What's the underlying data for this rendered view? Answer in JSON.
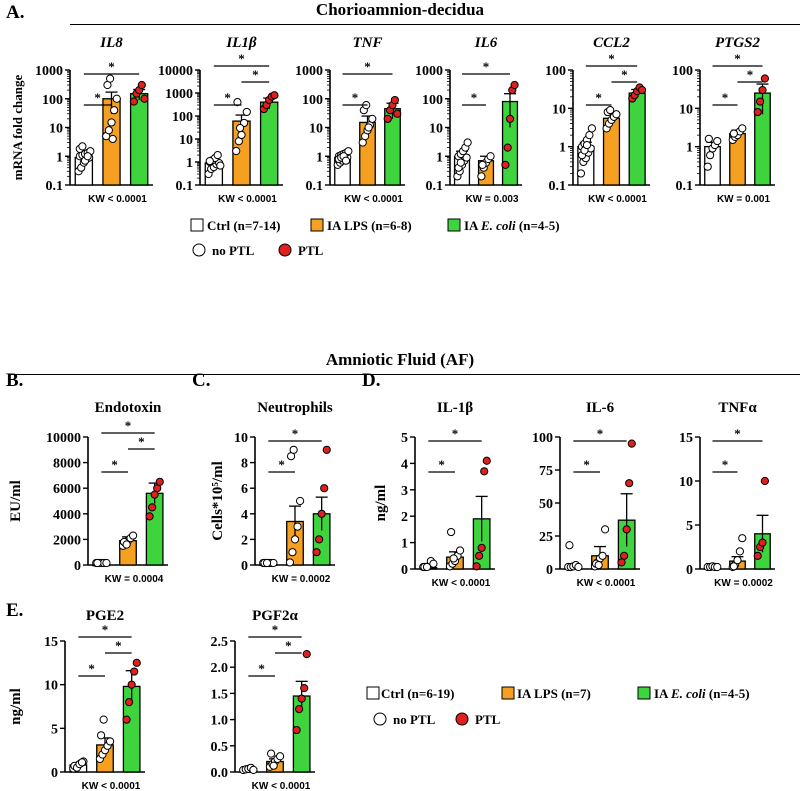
{
  "sections": {
    "chorio_title": "Chorioamnion-decidua",
    "af_title": "Amniotic Fluid (AF)"
  },
  "panel_labels": {
    "a": "A.",
    "b": "B.",
    "c": "C.",
    "d": "D.",
    "e": "E."
  },
  "colors": {
    "ctrl": "#ffffff",
    "lps": "#f5a020",
    "ecoli": "#3ed43e",
    "ptl": "#e0201e",
    "no_ptl": "#ffffff"
  },
  "legends": {
    "top": {
      "ctrl": "Ctrl (n=7-14)",
      "lps": "IA LPS (n=6-8)",
      "ecoli_prefix": "IA ",
      "ecoli_italic": "E. coli",
      "ecoli_suffix": " (n=4-5)",
      "no_ptl": "no PTL",
      "ptl": "PTL"
    },
    "bottom": {
      "ctrl": "Ctrl (n=6-19)",
      "lps": "IA LPS (n=7)",
      "ecoli_prefix": "IA ",
      "ecoli_italic": "E. coli",
      "ecoli_suffix": " (n=4-5)",
      "no_ptl": "no PTL",
      "ptl": "PTL"
    }
  },
  "chart_data": [
    {
      "id": "il8",
      "type": "bar",
      "title": "IL8",
      "title_italic": true,
      "scale": "log",
      "ylim": [
        0.1,
        1000
      ],
      "yticks": [
        "0.1",
        "1",
        "10",
        "100",
        "1000"
      ],
      "ylabel": "mRNA fold change",
      "categories": [
        "Ctrl",
        "IA LPS",
        "IA E. coli"
      ],
      "values": [
        0.9,
        100,
        150
      ],
      "errors": [
        0.3,
        70,
        60
      ],
      "sig": [
        "*",
        "*"
      ],
      "kw": "KW < 0.0001",
      "points": [
        [
          0.3,
          0.4,
          0.6,
          0.8,
          0.9,
          1.0,
          1.1,
          1.2,
          1.3,
          1.5,
          1.8,
          2.2,
          0.7,
          1.0
        ],
        [
          5,
          8,
          15,
          40,
          100,
          300,
          500,
          4
        ],
        [
          80,
          150,
          200,
          300,
          100
        ]
      ],
      "ptl": [
        [],
        [],
        [
          0,
          1,
          2,
          3,
          4
        ]
      ]
    },
    {
      "id": "il1b",
      "type": "bar",
      "title": "IL1β",
      "title_italic": true,
      "scale": "log",
      "ylim": [
        0.1,
        10000
      ],
      "yticks": [
        "0.1",
        "1",
        "10",
        "100",
        "1000",
        "10000"
      ],
      "categories": [
        "Ctrl",
        "IA LPS",
        "IA E. coli"
      ],
      "values": [
        0.9,
        60,
        400
      ],
      "errors": [
        0.3,
        50,
        200
      ],
      "sig": [
        "*",
        "*",
        "*"
      ],
      "kw": "KW < 0.0001",
      "points": [
        [
          0.3,
          0.5,
          0.6,
          0.8,
          0.9,
          1.0,
          1.2,
          1.5,
          2.0,
          0.7,
          1.1
        ],
        [
          3,
          8,
          15,
          50,
          150,
          400,
          30
        ],
        [
          200,
          300,
          500,
          700,
          800
        ]
      ],
      "ptl": [
        [],
        [],
        [
          0,
          1,
          2,
          3,
          4
        ]
      ]
    },
    {
      "id": "tnf",
      "type": "bar",
      "title": "TNF",
      "title_italic": true,
      "scale": "log",
      "ylim": [
        0.1,
        1000
      ],
      "yticks": [
        "0.1",
        "1",
        "10",
        "100",
        "1000"
      ],
      "categories": [
        "Ctrl",
        "IA LPS",
        "IA E. coli"
      ],
      "values": [
        0.9,
        15,
        45
      ],
      "errors": [
        0.2,
        10,
        25
      ],
      "sig": [
        "*",
        "*"
      ],
      "kw": "KW < 0.0001",
      "points": [
        [
          0.5,
          0.6,
          0.7,
          0.8,
          0.9,
          1.0,
          1.1,
          1.2,
          1.3,
          1.5,
          0.8,
          0.9,
          1.0,
          0.7
        ],
        [
          3,
          5,
          8,
          12,
          20,
          40,
          60,
          10
        ],
        [
          20,
          40,
          60,
          90,
          30
        ]
      ],
      "ptl": [
        [],
        [],
        [
          0,
          1,
          2,
          3,
          4
        ]
      ]
    },
    {
      "id": "il6",
      "type": "bar",
      "title": "IL6",
      "title_italic": true,
      "scale": "log",
      "ylim": [
        0.1,
        1000
      ],
      "yticks": [
        "0.1",
        "1",
        "10",
        "100",
        "1000"
      ],
      "categories": [
        "Ctrl",
        "IA LPS",
        "IA E. coli"
      ],
      "values": [
        1.0,
        0.7,
        80
      ],
      "errors": [
        0.5,
        0.3,
        70
      ],
      "sig": [
        "*",
        "*"
      ],
      "kw": "KW = 0.003",
      "points": [
        [
          0.2,
          0.3,
          0.5,
          0.7,
          0.9,
          1.0,
          1.2,
          1.5,
          2.0,
          3.0,
          0.4,
          0.6
        ],
        [
          0.2,
          0.4,
          0.6,
          0.8,
          1.0,
          0.5
        ],
        [
          0.5,
          2,
          20,
          200,
          300
        ]
      ],
      "ptl": [
        [],
        [],
        [
          0,
          1,
          2,
          3,
          4
        ]
      ]
    },
    {
      "id": "ccl2",
      "type": "bar",
      "title": "CCL2",
      "title_italic": true,
      "scale": "log",
      "ylim": [
        0.1,
        100
      ],
      "yticks": [
        "0.1",
        "1",
        "10",
        "100"
      ],
      "categories": [
        "Ctrl",
        "IA LPS",
        "IA E. coli"
      ],
      "values": [
        1.0,
        5.5,
        25
      ],
      "errors": [
        0.3,
        1.2,
        6
      ],
      "sig": [
        "*",
        "*",
        "*"
      ],
      "kw": "KW < 0.0001",
      "points": [
        [
          0.2,
          0.4,
          0.5,
          0.7,
          0.9,
          1.0,
          1.2,
          1.5,
          2.0,
          3.0,
          0.6,
          0.8,
          1.1
        ],
        [
          3,
          4,
          5,
          6,
          7,
          8,
          9
        ],
        [
          18,
          22,
          28,
          35,
          30
        ]
      ],
      "ptl": [
        [],
        [],
        [
          0,
          1,
          2,
          3,
          4
        ]
      ]
    },
    {
      "id": "ptgs2",
      "type": "bar",
      "title": "PTGS2",
      "title_italic": true,
      "scale": "log",
      "ylim": [
        0.1,
        100
      ],
      "yticks": [
        "0.1",
        "1",
        "10",
        "100"
      ],
      "categories": [
        "Ctrl",
        "IA LPS",
        "IA E. coli"
      ],
      "values": [
        1.0,
        2.2,
        25
      ],
      "errors": [
        0.3,
        0.5,
        18
      ],
      "sig": [
        "*",
        "*",
        "*"
      ],
      "kw": "KW = 0.001",
      "points": [
        [
          0.3,
          0.6,
          0.9,
          1.1,
          1.4,
          1.6
        ],
        [
          1.5,
          1.8,
          2.0,
          2.5,
          3.0,
          2.2
        ],
        [
          8,
          15,
          30,
          60
        ]
      ],
      "ptl": [
        [],
        [],
        [
          0,
          1,
          2,
          3
        ]
      ]
    },
    {
      "id": "endotoxin",
      "type": "bar",
      "title": "Endotoxin",
      "title_italic": false,
      "scale": "linear",
      "ylim": [
        0,
        10000
      ],
      "yticks": [
        "0",
        "2000",
        "4000",
        "6000",
        "8000",
        "10000"
      ],
      "ylabel": "EU/ml",
      "categories": [
        "Ctrl",
        "IA LPS",
        "IA E. coli"
      ],
      "values": [
        30,
        1900,
        5600
      ],
      "errors": [
        10,
        300,
        800
      ],
      "sig": [
        "*",
        "*",
        "*"
      ],
      "kw": "KW = 0.0004",
      "points": [
        [
          10,
          20,
          30,
          40,
          20,
          10
        ],
        [
          1500,
          1700,
          1900,
          2100,
          2300,
          1800,
          1600
        ],
        [
          3800,
          4500,
          5500,
          6000,
          6500
        ]
      ],
      "ptl": [
        [],
        [],
        [
          0,
          1,
          2,
          3,
          4
        ]
      ]
    },
    {
      "id": "neutrophils",
      "type": "bar",
      "title": "Neutrophils",
      "title_italic": false,
      "scale": "linear",
      "ylim": [
        0,
        10
      ],
      "yticks": [
        "0",
        "2",
        "4",
        "6",
        "8",
        "10"
      ],
      "ylabel": "Cells*10⁵/ml",
      "categories": [
        "Ctrl",
        "IA LPS",
        "IA E. coli"
      ],
      "values": [
        0.05,
        3.4,
        4.0
      ],
      "errors": [
        0.02,
        1.2,
        1.3
      ],
      "sig": [
        "*",
        "*"
      ],
      "kw": "KW = 0.0002",
      "points": [
        [
          0,
          0,
          0,
          0,
          0.05,
          0.1,
          0.05
        ],
        [
          0.2,
          1,
          2,
          3,
          5,
          8.5,
          9
        ],
        [
          1,
          2,
          4,
          6,
          9
        ]
      ],
      "ptl": [
        [],
        [],
        [
          0,
          1,
          2,
          3,
          4
        ]
      ]
    },
    {
      "id": "il1b_af",
      "type": "bar",
      "title": "IL-1β",
      "title_italic": false,
      "scale": "linear",
      "ylim": [
        0,
        5
      ],
      "yticks": [
        "0",
        "1",
        "2",
        "3",
        "4",
        "5"
      ],
      "ylabel": "ng/ml",
      "categories": [
        "Ctrl",
        "IA LPS",
        "IA E. coli"
      ],
      "values": [
        0.05,
        0.45,
        1.9
      ],
      "errors": [
        0.03,
        0.2,
        0.85
      ],
      "sig": [
        "*",
        "*"
      ],
      "kw": "KW < 0.0001",
      "points": [
        [
          0.0,
          0.05,
          0.1,
          0.3,
          0.2,
          0.0,
          0.05
        ],
        [
          0.1,
          0.2,
          0.3,
          0.5,
          0.7,
          1.4,
          0.4
        ],
        [
          0.1,
          0.5,
          0.8,
          3.7,
          4.1
        ]
      ],
      "ptl": [
        [],
        [],
        [
          0,
          1,
          2,
          3,
          4
        ]
      ]
    },
    {
      "id": "il6_af",
      "type": "bar",
      "title": "IL-6",
      "title_italic": false,
      "scale": "linear",
      "ylim": [
        0,
        100
      ],
      "yticks": [
        "0",
        "25",
        "50",
        "75",
        "100"
      ],
      "categories": [
        "Ctrl",
        "IA LPS",
        "IA E. coli"
      ],
      "values": [
        1.5,
        10,
        37
      ],
      "errors": [
        0.8,
        7,
        20
      ],
      "sig": [
        "*",
        "*"
      ],
      "kw": "KW < 0.0001",
      "points": [
        [
          0,
          1,
          2,
          3,
          1,
          18
        ],
        [
          2,
          5,
          8,
          10,
          30,
          4,
          3
        ],
        [
          5,
          10,
          30,
          65,
          95
        ]
      ],
      "ptl": [
        [],
        [],
        [
          0,
          1,
          2,
          3,
          4
        ]
      ]
    },
    {
      "id": "tnfa_af",
      "type": "bar",
      "title": "TNFα",
      "title_italic": false,
      "scale": "linear",
      "ylim": [
        0,
        15
      ],
      "yticks": [
        "0",
        "5",
        "10",
        "15"
      ],
      "categories": [
        "Ctrl",
        "IA LPS",
        "IA E. coli"
      ],
      "values": [
        0.1,
        0.9,
        4.0
      ],
      "errors": [
        0.05,
        0.5,
        2.1
      ],
      "sig": [
        "*",
        "*"
      ],
      "kw": "KW = 0.0002",
      "points": [
        [
          0,
          0.1,
          0.3,
          0.1,
          0.0
        ],
        [
          0.2,
          0.5,
          1,
          2,
          3.5,
          0.3
        ],
        [
          1.5,
          2.5,
          3,
          10
        ]
      ],
      "ptl": [
        [],
        [],
        [
          0,
          1,
          2,
          3
        ]
      ]
    },
    {
      "id": "pge2",
      "type": "bar",
      "title": "PGE2",
      "title_italic": false,
      "scale": "linear",
      "ylim": [
        0,
        15
      ],
      "yticks": [
        "0",
        "5",
        "10",
        "15"
      ],
      "ylabel": "ng/ml",
      "categories": [
        "Ctrl",
        "IA LPS",
        "IA E. coli"
      ],
      "values": [
        0.8,
        3.1,
        9.8
      ],
      "errors": [
        0.2,
        0.8,
        1.8
      ],
      "sig": [
        "*",
        "*",
        "*"
      ],
      "kw": "KW < 0.0001",
      "points": [
        [
          0.4,
          0.6,
          0.8,
          1.0,
          1.2,
          0.7,
          0.5,
          0.9,
          1.1
        ],
        [
          1.5,
          2.0,
          2.5,
          3.0,
          3.5,
          4.2,
          6.0
        ],
        [
          6.0,
          8.0,
          10.0,
          11.5,
          12.5
        ]
      ],
      "ptl": [
        [],
        [],
        [
          0,
          1,
          2,
          3,
          4
        ]
      ]
    },
    {
      "id": "pgf2a",
      "type": "bar",
      "title": "PGF2α",
      "title_italic": false,
      "scale": "linear",
      "ylim": [
        0,
        2.5
      ],
      "yticks": [
        "0.0",
        "0.5",
        "1.0",
        "1.5",
        "2.0",
        "2.5"
      ],
      "categories": [
        "Ctrl",
        "IA LPS",
        "IA E. coli"
      ],
      "values": [
        0.05,
        0.2,
        1.45
      ],
      "errors": [
        0.02,
        0.05,
        0.28
      ],
      "sig": [
        "*",
        "*",
        "*"
      ],
      "kw": "KW < 0.0001",
      "points": [
        [
          0.02,
          0.05,
          0.06,
          0.08,
          0.04
        ],
        [
          0.1,
          0.15,
          0.2,
          0.25,
          0.3,
          0.35,
          0.12
        ],
        [
          0.8,
          1.2,
          1.4,
          1.6,
          2.25
        ]
      ],
      "ptl": [
        [],
        [],
        [
          0,
          1,
          2,
          3,
          4
        ]
      ]
    }
  ]
}
